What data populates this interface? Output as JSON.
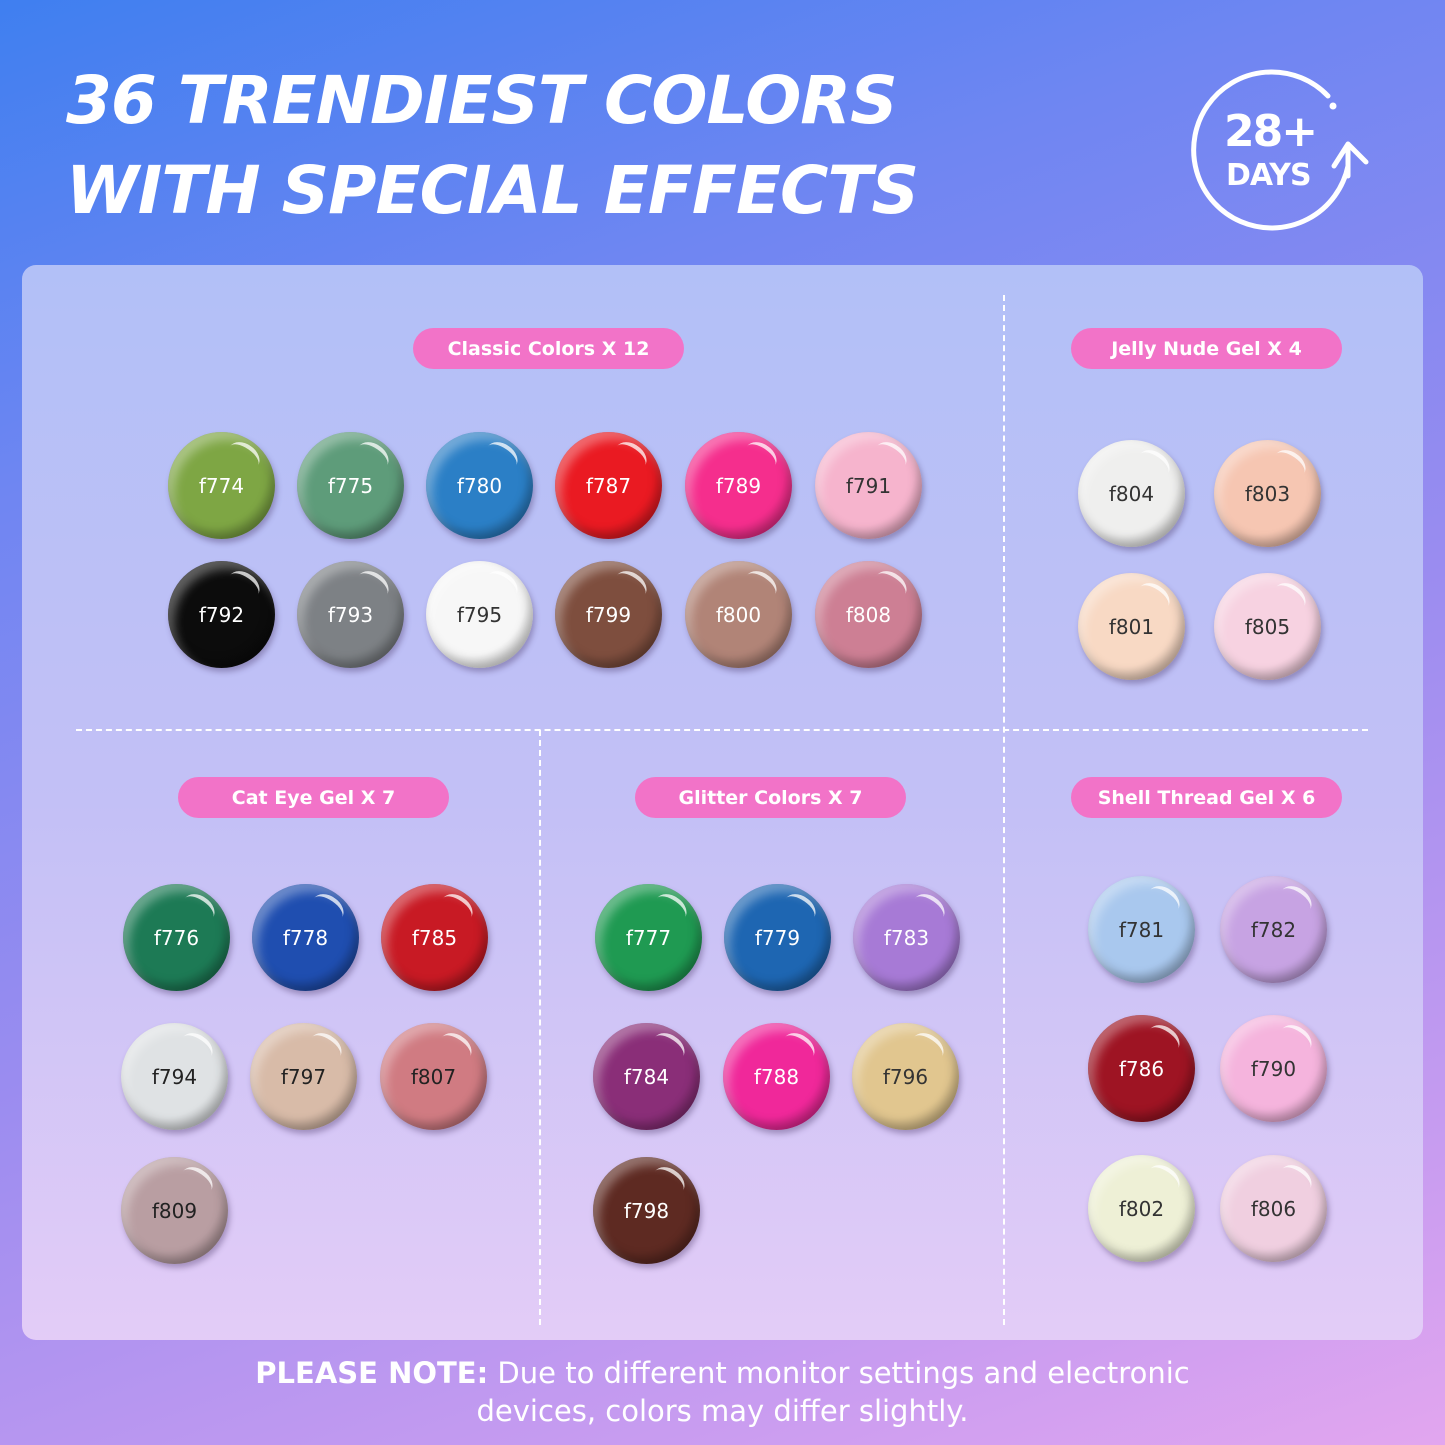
{
  "header": {
    "title_line1": "36 TRENDIEST COLORS",
    "title_line2": "WITH SPECIAL EFFECTS",
    "badge_number": "28+",
    "badge_unit": "DAYS"
  },
  "sections": [
    {
      "label": "Classic Colors X 12",
      "swatches": [
        {
          "code": "f774",
          "color": "#7ea644",
          "text": "#ffffff"
        },
        {
          "code": "f775",
          "color": "#5e9c7a",
          "text": "#ffffff"
        },
        {
          "code": "f780",
          "color": "#2b7fc6",
          "text": "#ffffff"
        },
        {
          "code": "f787",
          "color": "#ea1a22",
          "text": "#ffffff"
        },
        {
          "code": "f789",
          "color": "#f52e8d",
          "text": "#ffffff"
        },
        {
          "code": "f791",
          "color": "#f6b4cd",
          "text": "#333333"
        },
        {
          "code": "f792",
          "color": "#0c0c0c",
          "text": "#ffffff"
        },
        {
          "code": "f793",
          "color": "#7d8185",
          "text": "#ffffff"
        },
        {
          "code": "f795",
          "color": "#f7f7f7",
          "text": "#333333"
        },
        {
          "code": "f799",
          "color": "#7e4e3e",
          "text": "#ffffff"
        },
        {
          "code": "f800",
          "color": "#b18477",
          "text": "#ffffff"
        },
        {
          "code": "f808",
          "color": "#cd7f94",
          "text": "#ffffff"
        }
      ]
    },
    {
      "label": "Jelly Nude Gel X 4",
      "swatches": [
        {
          "code": "f804",
          "color": "#efefee",
          "text": "#333333"
        },
        {
          "code": "f803",
          "color": "#f6c6b2",
          "text": "#333333"
        },
        {
          "code": "f801",
          "color": "#f8d9c4",
          "text": "#333333"
        },
        {
          "code": "f805",
          "color": "#f7d2e1",
          "text": "#333333"
        }
      ]
    },
    {
      "label": "Cat Eye Gel X 7",
      "swatches": [
        {
          "code": "f776",
          "color": "#1d7a55",
          "text": "#ffffff"
        },
        {
          "code": "f778",
          "color": "#1f4eb0",
          "text": "#ffffff"
        },
        {
          "code": "f785",
          "color": "#c81a24",
          "text": "#ffffff"
        },
        {
          "code": "f794",
          "color": "#dfe2e4",
          "text": "#222222"
        },
        {
          "code": "f797",
          "color": "#d8bba8",
          "text": "#222222"
        },
        {
          "code": "f807",
          "color": "#d07b82",
          "text": "#222222"
        },
        {
          "code": "f809",
          "color": "#b99ea2",
          "text": "#222222"
        }
      ]
    },
    {
      "label": "Glitter Colors X 7",
      "swatches": [
        {
          "code": "f777",
          "color": "#1f9a52",
          "text": "#ffffff"
        },
        {
          "code": "f779",
          "color": "#1e66b2",
          "text": "#ffffff"
        },
        {
          "code": "f783",
          "color": "#a77ad6",
          "text": "#ffffff"
        },
        {
          "code": "f784",
          "color": "#8a2e78",
          "text": "#ffffff"
        },
        {
          "code": "f788",
          "color": "#f0289a",
          "text": "#ffffff"
        },
        {
          "code": "f796",
          "color": "#e1c68f",
          "text": "#333333"
        },
        {
          "code": "f798",
          "color": "#5e2a22",
          "text": "#ffffff"
        }
      ]
    },
    {
      "label": "Shell Thread Gel X 6",
      "swatches": [
        {
          "code": "f781",
          "color": "#a9c8ee",
          "text": "#333333"
        },
        {
          "code": "f782",
          "color": "#c7a3e3",
          "text": "#333333"
        },
        {
          "code": "f786",
          "color": "#9e1423",
          "text": "#ffffff"
        },
        {
          "code": "f790",
          "color": "#f5b4dd",
          "text": "#333333"
        },
        {
          "code": "f802",
          "color": "#eef0d6",
          "text": "#333333"
        },
        {
          "code": "f806",
          "color": "#f0cfe0",
          "text": "#333333"
        }
      ]
    }
  ],
  "note": {
    "bold": "PLEASE NOTE:",
    "text": " Due to different monitor settings and electronic",
    "line2": "devices, colors may differ slightly."
  }
}
